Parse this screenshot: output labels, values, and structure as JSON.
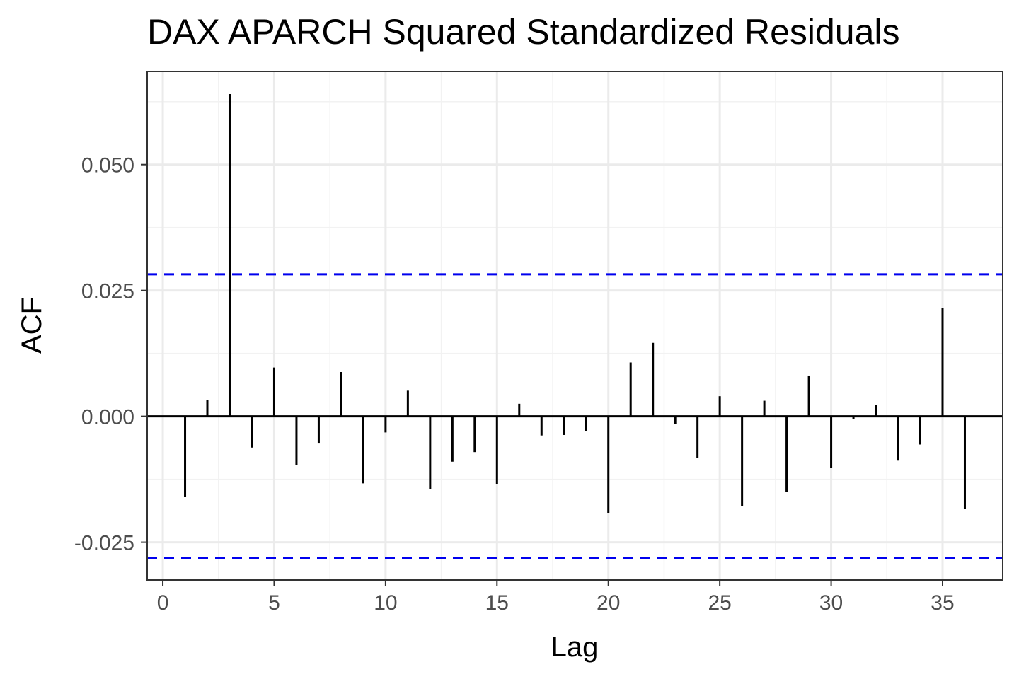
{
  "chart_data": {
    "type": "bar",
    "title": "DAX APARCH Squared Standardized Residuals",
    "xlabel": "Lag",
    "ylabel": "ACF",
    "xlim": [
      -0.7,
      37.7
    ],
    "ylim": [
      -0.0325,
      0.0685
    ],
    "xticks": [
      0,
      5,
      10,
      15,
      20,
      25,
      30,
      35
    ],
    "xtick_labels": [
      "0",
      "5",
      "10",
      "15",
      "20",
      "25",
      "30",
      "35"
    ],
    "yticks": [
      -0.025,
      0,
      0.025,
      0.05
    ],
    "ytick_labels": [
      "-0.025",
      "0.000",
      "0.025",
      "0.050"
    ],
    "grid": true,
    "lags": [
      1,
      2,
      3,
      4,
      5,
      6,
      7,
      8,
      9,
      10,
      11,
      12,
      13,
      14,
      15,
      16,
      17,
      18,
      19,
      20,
      21,
      22,
      23,
      24,
      25,
      26,
      27,
      28,
      29,
      30,
      31,
      32,
      33,
      34,
      35,
      36
    ],
    "values": [
      -0.016,
      0.0033,
      0.064,
      -0.0062,
      0.0097,
      -0.0097,
      -0.0054,
      0.0088,
      -0.0133,
      -0.0032,
      0.0051,
      -0.0145,
      -0.009,
      -0.0071,
      -0.0134,
      0.0025,
      -0.0038,
      -0.0037,
      -0.0029,
      -0.0192,
      0.0107,
      0.0146,
      -0.0015,
      -0.0082,
      0.004,
      -0.0178,
      0.0031,
      -0.015,
      0.0081,
      -0.0102,
      -0.0006,
      0.0023,
      -0.0088,
      -0.0056,
      0.0215,
      -0.0184
    ],
    "confidence_bounds": [
      0.0282,
      -0.0282
    ],
    "colors": {
      "bars": "#000000",
      "bounds": "#0000ee",
      "grid_major": "#ebebeb",
      "grid_minor": "#f2f2f2",
      "panel_border": "#333333"
    }
  }
}
